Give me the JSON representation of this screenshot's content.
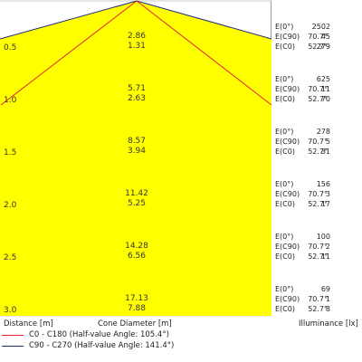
{
  "rows": [
    {
      "distance": "0.5",
      "cone": [
        "2.86",
        "1.31"
      ],
      "e0": "2502",
      "ec90": "45",
      "ec0": "279"
    },
    {
      "distance": "1.0",
      "cone": [
        "5.71",
        "2.63"
      ],
      "e0": "625",
      "ec90": "11",
      "ec0": "70"
    },
    {
      "distance": "1.5",
      "cone": [
        "8.57",
        "3.94"
      ],
      "e0": "278",
      "ec90": "5",
      "ec0": "31"
    },
    {
      "distance": "2.0",
      "cone": [
        "11.42",
        "5.25"
      ],
      "e0": "156",
      "ec90": "3",
      "ec0": "17"
    },
    {
      "distance": "2.5",
      "cone": [
        "14.28",
        "6.56"
      ],
      "e0": "100",
      "ec90": "2",
      "ec0": "11"
    },
    {
      "distance": "3.0",
      "cone": [
        "17.13",
        "7.88"
      ],
      "e0": "69",
      "ec90": "1",
      "ec0": "8"
    }
  ],
  "labels": {
    "e0": "E(0°)",
    "ec90": "E(C90)",
    "ec0": "E(C0)",
    "ang_c90": "70.7°",
    "ang_c0": "52.7°"
  },
  "footer": {
    "distance": "Distance [m]",
    "cone": "Cone Diameter [m]",
    "illuminance": "Illuminance [lx]"
  },
  "legend": [
    {
      "text": "C0 - C180 (Half-value Angle: 105.4°)",
      "color": "#e8202a"
    },
    {
      "text": "C90 - C270 (Half-value Angle: 141.4°)",
      "color": "#1c2d7a"
    }
  ],
  "colors": {
    "fill": "#ffff00",
    "row_line": "#cccccc"
  }
}
